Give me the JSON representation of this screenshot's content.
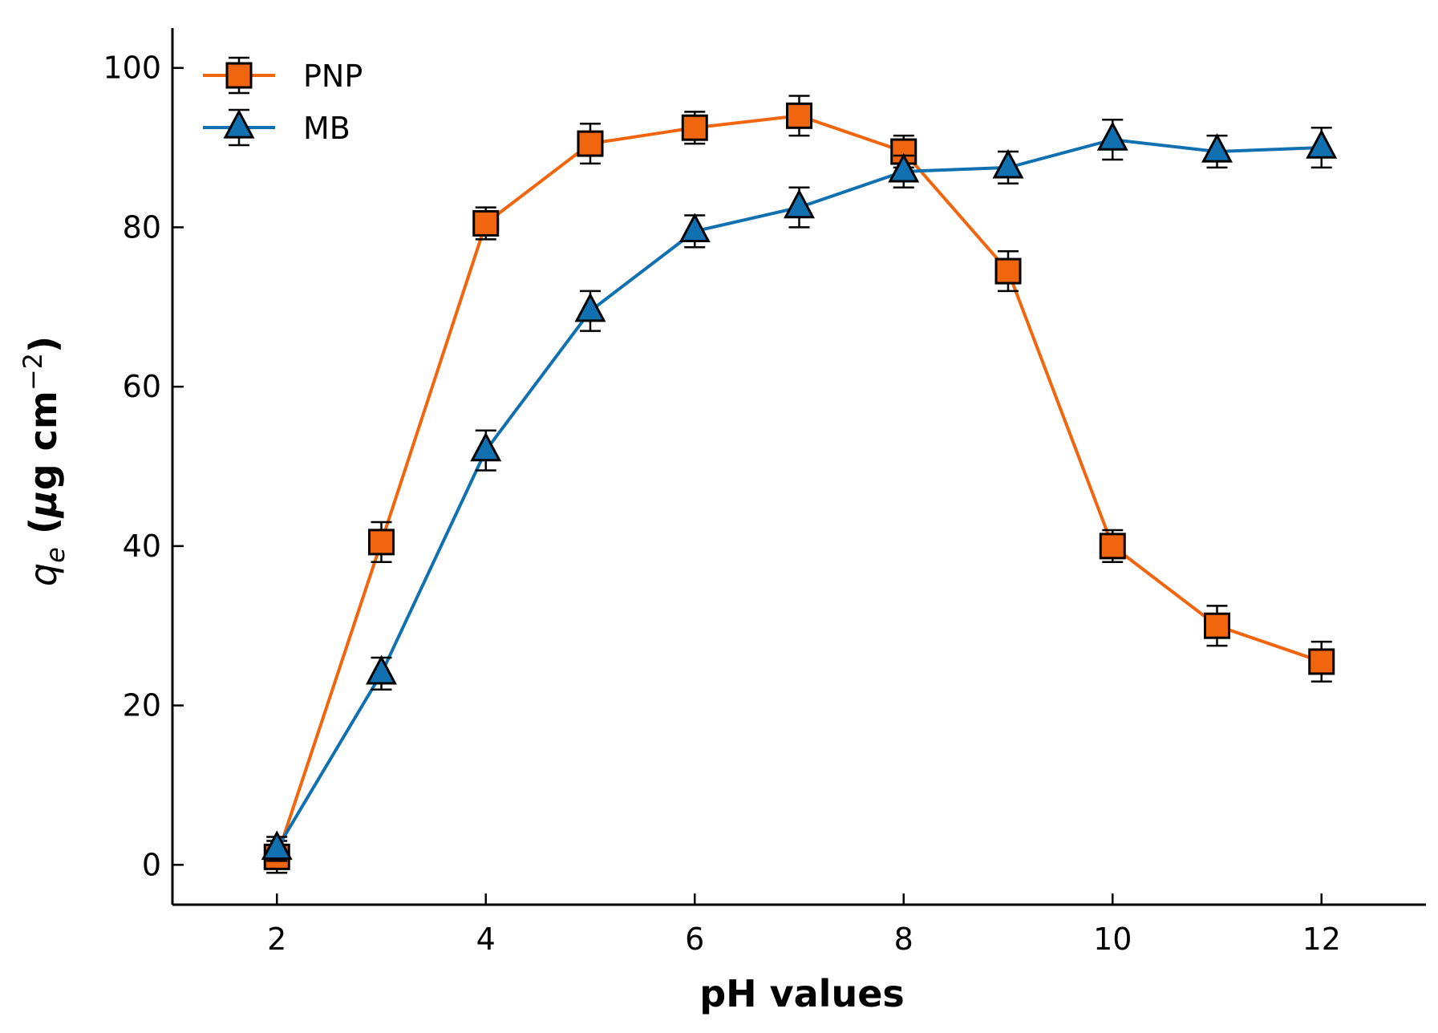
{
  "chart_data": {
    "type": "line",
    "xlabel": "pH values",
    "ylabel_parts": {
      "symbol": "q",
      "subscript": "e",
      "unit_open": " (",
      "mu": "μ",
      "unit_mid": "g cm",
      "exponent": "−2",
      "unit_close": ")"
    },
    "xlim": [
      1,
      13
    ],
    "ylim": [
      -5,
      105
    ],
    "xticks": [
      2,
      4,
      6,
      8,
      10,
      12
    ],
    "yticks": [
      0,
      20,
      40,
      60,
      80,
      100
    ],
    "grid": false,
    "legend_position": "top-left",
    "series": [
      {
        "name": "PNP",
        "color": "#f0650e",
        "marker": "square",
        "x": [
          2,
          3,
          4,
          5,
          6,
          7,
          8,
          9,
          10,
          11,
          12
        ],
        "y": [
          1.0,
          40.5,
          80.5,
          90.5,
          92.5,
          94.0,
          89.5,
          74.5,
          40.0,
          30.0,
          25.5
        ],
        "error": [
          2.0,
          2.5,
          2.0,
          2.5,
          2.0,
          2.5,
          2.0,
          2.5,
          2.0,
          2.5,
          2.5
        ]
      },
      {
        "name": "MB",
        "color": "#1070b0",
        "marker": "triangle",
        "x": [
          2,
          3,
          4,
          5,
          6,
          7,
          8,
          9,
          10,
          11,
          12
        ],
        "y": [
          2.0,
          24.0,
          52.0,
          69.5,
          79.5,
          82.5,
          87.0,
          87.5,
          91.0,
          89.5,
          90.0
        ],
        "error": [
          1.5,
          2.0,
          2.5,
          2.5,
          2.0,
          2.5,
          2.0,
          2.0,
          2.5,
          2.0,
          2.5
        ]
      }
    ]
  }
}
